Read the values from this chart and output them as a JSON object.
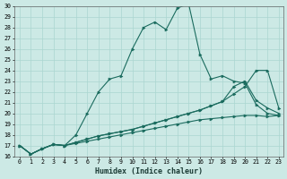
{
  "xlabel": "Humidex (Indice chaleur)",
  "background_color": "#cce9e5",
  "grid_color": "#aad6d0",
  "line_color": "#1a6b5e",
  "xlim_min": -0.5,
  "xlim_max": 23.4,
  "ylim_min": 16,
  "ylim_max": 30,
  "xticks": [
    0,
    1,
    2,
    3,
    4,
    5,
    6,
    7,
    8,
    9,
    10,
    11,
    12,
    13,
    14,
    15,
    16,
    17,
    18,
    19,
    20,
    21,
    22,
    23
  ],
  "yticks": [
    16,
    17,
    18,
    19,
    20,
    21,
    22,
    23,
    24,
    25,
    26,
    27,
    28,
    29,
    30
  ],
  "series": [
    [
      17.0,
      16.2,
      16.7,
      17.1,
      17.0,
      18.0,
      20.0,
      22.0,
      23.2,
      23.5,
      26.0,
      28.0,
      28.5,
      27.8,
      29.8,
      30.2,
      25.5,
      23.2,
      23.5,
      23.0,
      22.8,
      20.8,
      20.0,
      19.8
    ],
    [
      17.0,
      16.2,
      16.7,
      17.1,
      17.0,
      17.3,
      17.6,
      17.9,
      18.1,
      18.3,
      18.5,
      18.8,
      19.1,
      19.4,
      19.7,
      20.0,
      20.3,
      20.7,
      21.1,
      21.8,
      22.5,
      24.0,
      24.0,
      20.5
    ],
    [
      17.0,
      16.2,
      16.7,
      17.1,
      17.0,
      17.3,
      17.6,
      17.9,
      18.1,
      18.3,
      18.5,
      18.8,
      19.1,
      19.4,
      19.7,
      20.0,
      20.3,
      20.7,
      21.1,
      22.5,
      23.0,
      21.2,
      20.5,
      20.0
    ],
    [
      17.0,
      16.2,
      16.7,
      17.1,
      17.0,
      17.2,
      17.4,
      17.6,
      17.8,
      18.0,
      18.2,
      18.4,
      18.6,
      18.8,
      19.0,
      19.2,
      19.4,
      19.5,
      19.6,
      19.7,
      19.8,
      19.8,
      19.7,
      19.8
    ]
  ]
}
